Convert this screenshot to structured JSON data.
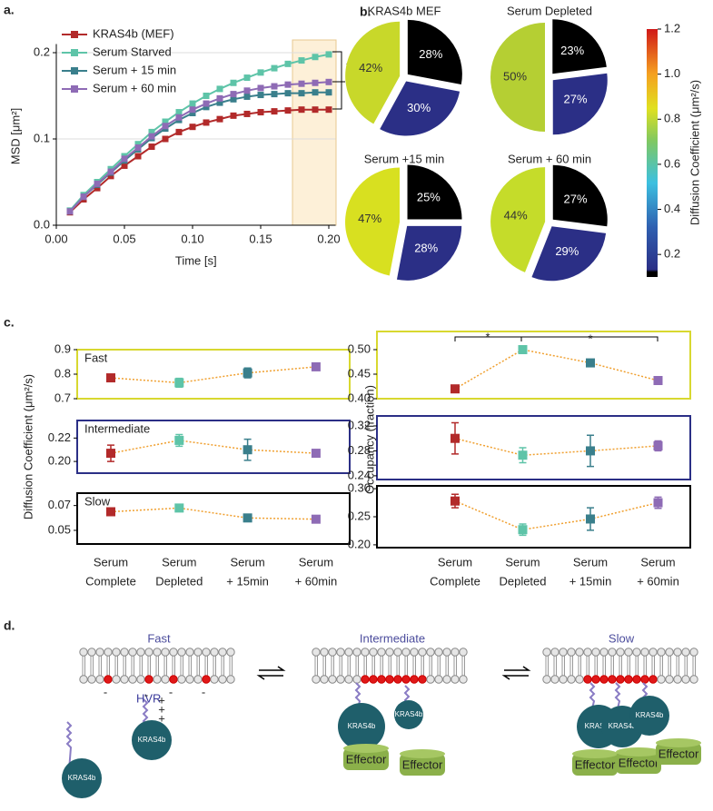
{
  "panels": [
    "a.",
    "b.",
    "c.",
    "d."
  ],
  "chart_data": [
    {
      "type": "line",
      "x_label": "Time [s]",
      "y_label": "MSD [μm²]",
      "legend": "upper left",
      "grid": true,
      "annotation": "*",
      "x": [
        0.01,
        0.02,
        0.03,
        0.04,
        0.05,
        0.06,
        0.07,
        0.08,
        0.09,
        0.1,
        0.11,
        0.12,
        0.13,
        0.14,
        0.15,
        0.16,
        0.17,
        0.18,
        0.19,
        0.2
      ],
      "xlim": [
        0,
        0.205
      ],
      "xticks": [
        {
          "value": 0,
          "label": "0.00"
        },
        {
          "value": 0.05,
          "label": "0.05"
        },
        {
          "value": 0.1,
          "label": "0.10"
        },
        {
          "value": 0.15,
          "label": "0.15"
        },
        {
          "value": 0.2,
          "label": "0.20"
        }
      ],
      "ylim": [
        0,
        0.21
      ],
      "yticks": [
        {
          "value": 0,
          "label": "0.0"
        },
        {
          "value": 0.1,
          "label": "0.1"
        },
        {
          "value": 0.2,
          "label": "0.2"
        }
      ],
      "series": [
        {
          "name": "KRAS4b (MEF)",
          "color": "#b22a2a",
          "values": [
            0.015,
            0.03,
            0.043,
            0.057,
            0.069,
            0.08,
            0.091,
            0.1,
            0.108,
            0.114,
            0.119,
            0.123,
            0.127,
            0.129,
            0.131,
            0.132,
            0.133,
            0.134,
            0.134,
            0.134
          ]
        },
        {
          "name": "Serum Starved",
          "color": "#5ec4a8",
          "values": [
            0.017,
            0.035,
            0.05,
            0.065,
            0.08,
            0.094,
            0.108,
            0.12,
            0.131,
            0.141,
            0.15,
            0.158,
            0.165,
            0.171,
            0.177,
            0.182,
            0.187,
            0.191,
            0.195,
            0.198
          ]
        },
        {
          "name": "Serum + 15 min",
          "color": "#3a7f8c",
          "values": [
            0.016,
            0.033,
            0.047,
            0.061,
            0.075,
            0.088,
            0.101,
            0.112,
            0.122,
            0.13,
            0.137,
            0.142,
            0.146,
            0.149,
            0.151,
            0.152,
            0.153,
            0.153,
            0.154,
            0.154
          ]
        },
        {
          "name": "Serum + 60 min",
          "color": "#8e6bb5",
          "values": [
            0.016,
            0.033,
            0.048,
            0.062,
            0.077,
            0.09,
            0.103,
            0.115,
            0.125,
            0.134,
            0.141,
            0.147,
            0.152,
            0.156,
            0.159,
            0.161,
            0.163,
            0.164,
            0.165,
            0.166
          ]
        }
      ]
    },
    {
      "type": "pie",
      "subplots": [
        {
          "title": "KRAS4b MEF",
          "values": [
            28,
            30,
            42
          ],
          "value_labels": [
            "28%",
            "30%",
            "42%"
          ],
          "colors": [
            "#000000",
            "#2b2f86",
            "#c8d82a"
          ]
        },
        {
          "title": "Serum Depleted",
          "values": [
            23,
            27,
            50
          ],
          "value_labels": [
            "23%",
            "27%",
            "50%"
          ],
          "colors": [
            "#000000",
            "#2b2f86",
            "#b5cf33"
          ]
        },
        {
          "title": "Serum +15 min",
          "values": [
            25,
            28,
            47
          ],
          "value_labels": [
            "25%",
            "28%",
            "47%"
          ],
          "colors": [
            "#000000",
            "#2b2f86",
            "#d8e020"
          ]
        },
        {
          "title": "Serum + 60 min",
          "values": [
            27,
            29,
            44
          ],
          "value_labels": [
            "27%",
            "29%",
            "44%"
          ],
          "colors": [
            "#000000",
            "#2b2f86",
            "#c5dc2a"
          ]
        }
      ],
      "colorbar": {
        "label": "Diffusion Coefficient (μm²/s)",
        "lim": [
          0.1,
          1.2
        ],
        "ticks": [
          0.2,
          0.4,
          0.6,
          0.8,
          {
            "value": 1,
            "label": "1.0"
          },
          1.2
        ]
      }
    },
    {
      "type": "dot",
      "y_label": "Diffusion Coefficient (μm²/s)",
      "line_color": "#f0a030",
      "categories": [
        [
          "Serum",
          "Complete"
        ],
        [
          "Serum",
          "Depleted"
        ],
        [
          "Serum",
          "+ 15min"
        ],
        [
          "Serum",
          "+ 60min"
        ]
      ],
      "colors": [
        "#b22a2a",
        "#5ec4a8",
        "#3a7f8c",
        "#8e6bb5"
      ],
      "panels": [
        {
          "label": "Fast",
          "color": "#d8d830",
          "ylim": [
            0.7,
            0.9
          ],
          "yticks": [
            0.7,
            0.8,
            0.9
          ],
          "values": [
            0.785,
            0.765,
            0.805,
            0.83
          ],
          "errors": [
            0,
            0.018,
            0.02,
            0
          ]
        },
        {
          "label": "Intermediate",
          "color": "#2b2f86",
          "ylim": [
            0.19,
            0.235
          ],
          "yticks": [
            {
              "value": 0.2,
              "label": "0.20"
            },
            0.22
          ],
          "values": [
            0.207,
            0.218,
            0.21,
            0.207
          ],
          "errors": [
            0.007,
            0.005,
            0.009,
            0.003
          ]
        },
        {
          "label": "Slow",
          "color": "#000000",
          "ylim": [
            0.039,
            0.08
          ],
          "yticks": [
            0.05,
            0.07
          ],
          "values": [
            0.065,
            0.068,
            0.06,
            0.059
          ],
          "errors": [
            0.002,
            0.001,
            0.001,
            0.001
          ]
        }
      ]
    },
    {
      "type": "dot",
      "y_label": "Occupancy (fraction)",
      "line_color": "#f0a030",
      "annotations": [
        "*",
        "*"
      ],
      "categories": [
        [
          "Serum",
          "Complete"
        ],
        [
          "Serum",
          "Depleted"
        ],
        [
          "Serum",
          "+ 15min"
        ],
        [
          "Serum",
          "+ 60min"
        ]
      ],
      "colors": [
        "#b22a2a",
        "#5ec4a8",
        "#3a7f8c",
        "#8e6bb5"
      ],
      "panels": [
        {
          "color": "#d8d830",
          "ylim": [
            0.4,
            0.537
          ],
          "yticks": [
            {
              "value": 0.4,
              "label": "0.40"
            },
            0.45,
            {
              "value": 0.5,
              "label": "0.50"
            }
          ],
          "values": [
            0.42,
            0.5,
            0.473,
            0.437
          ],
          "errors": [
            0.007,
            0.005,
            0.002,
            0.002
          ]
        },
        {
          "color": "#2b2f86",
          "ylim": [
            0.234,
            0.336
          ],
          "yticks": [
            0.24,
            0.28,
            0.32
          ],
          "values": [
            0.3,
            0.273,
            0.28,
            0.288
          ],
          "errors": [
            0.025,
            0.012,
            0.025,
            0.008
          ]
        },
        {
          "color": "#000000",
          "ylim": [
            0.195,
            0.305
          ],
          "yticks": [
            {
              "value": 0.2,
              "label": "0.20"
            },
            0.25,
            {
              "value": 0.3,
              "label": "0.30"
            }
          ],
          "values": [
            0.278,
            0.227,
            0.246,
            0.275
          ],
          "errors": [
            0.012,
            0.01,
            0.02,
            0.01
          ]
        }
      ]
    }
  ],
  "diagram": {
    "titles": [
      "Fast",
      "Intermediate",
      "Slow"
    ],
    "protein": "KRAS4b",
    "effector": "Effector",
    "hvr": "HVR",
    "minus": "-",
    "plus": "+"
  }
}
